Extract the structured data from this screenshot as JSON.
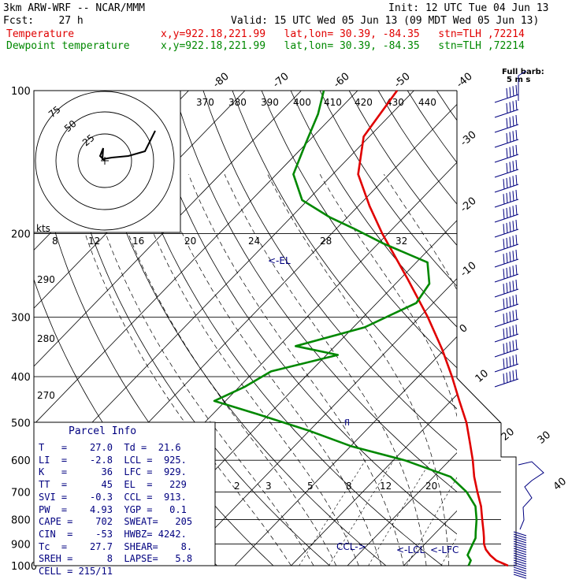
{
  "header": {
    "model": "3km ARW-WRF -- NCAR/MMM",
    "init": "Init: 12 UTC Tue 04 Jun 13",
    "fcst": "Fcst:    27 h",
    "valid": "Valid: 15 UTC Wed 05 Jun 13 (09 MDT Wed 05 Jun 13)",
    "temp_label": "Temperature",
    "temp_info": "x,y=922.18,221.99   lat,lon= 30.39, -84.35   stn=TLH ,72214",
    "dew_label": "Dewpoint temperature",
    "dew_info": "x,y=922.18,221.99   lat,lon= 30.39, -84.35   stn=TLH ,72214"
  },
  "colors": {
    "temperature": "#e00000",
    "dewpoint": "#008800",
    "annotation": "#000080",
    "hodograph": "#000000"
  },
  "chart_data": {
    "type": "line",
    "subtype": "skew-T log-p sounding",
    "pressure_levels": [
      "100",
      "200",
      "300",
      "400",
      "500",
      "600",
      "700",
      "800",
      "900",
      "1000"
    ],
    "isotherm_labels": [
      "-80",
      "-70",
      "-60",
      "-50",
      "-40",
      "-30",
      "-20",
      "-10",
      "0",
      "10",
      "20",
      "30",
      "40"
    ],
    "theta_labels": [
      "370",
      "380",
      "390",
      "400",
      "410",
      "420",
      "430",
      "440"
    ],
    "theta_low_labels": [
      "290",
      "280",
      "270"
    ],
    "mixing_ratio_labels": [
      "2",
      "3",
      "5",
      "8",
      "12",
      "20"
    ],
    "series": [
      {
        "name": "Temperature",
        "points": [
          [
            1000,
            28.5
          ],
          [
            975,
            25.5
          ],
          [
            950,
            23.5
          ],
          [
            925,
            21.8
          ],
          [
            900,
            20.5
          ],
          [
            875,
            19.5
          ],
          [
            850,
            18.4
          ],
          [
            800,
            16
          ],
          [
            750,
            13.5
          ],
          [
            700,
            10.4
          ],
          [
            650,
            7.2
          ],
          [
            600,
            4.1
          ],
          [
            550,
            0.5
          ],
          [
            500,
            -3.5
          ],
          [
            450,
            -8.5
          ],
          [
            400,
            -14
          ],
          [
            350,
            -20.5
          ],
          [
            300,
            -28.5
          ],
          [
            250,
            -38.5
          ],
          [
            200,
            -51
          ],
          [
            175,
            -58
          ],
          [
            150,
            -65.5
          ],
          [
            125,
            -71
          ],
          [
            100,
            -73
          ]
        ]
      },
      {
        "name": "Dewpoint temperature",
        "points": [
          [
            1000,
            21.5
          ],
          [
            975,
            21
          ],
          [
            950,
            19.5
          ],
          [
            925,
            19
          ],
          [
            900,
            18.5
          ],
          [
            875,
            18
          ],
          [
            850,
            17
          ],
          [
            800,
            15
          ],
          [
            750,
            12.5
          ],
          [
            700,
            8.5
          ],
          [
            650,
            3
          ],
          [
            600,
            -8
          ],
          [
            560,
            -20
          ],
          [
            520,
            -30
          ],
          [
            480,
            -42
          ],
          [
            450,
            -52
          ],
          [
            420,
            -49
          ],
          [
            390,
            -47
          ],
          [
            360,
            -38
          ],
          [
            345,
            -47
          ],
          [
            315,
            -38
          ],
          [
            280,
            -33
          ],
          [
            255,
            -34
          ],
          [
            230,
            -38
          ],
          [
            210,
            -49
          ],
          [
            195,
            -57
          ],
          [
            185,
            -63
          ],
          [
            170,
            -71
          ],
          [
            150,
            -77
          ],
          [
            130,
            -80
          ],
          [
            112,
            -83
          ],
          [
            100,
            -86
          ]
        ]
      }
    ],
    "hodograph": {
      "rings": [
        "50",
        "25",
        "75"
      ],
      "kts_label": "kts",
      "x_ticks": [
        "8",
        "12",
        "16",
        "20",
        "24",
        "28",
        "32"
      ]
    },
    "wind_barbs_legend": [
      "Full barb:",
      "5 m s"
    ],
    "annotations": {
      "el": "<-EL",
      "ccl": "CCL->",
      "lcl": "<-LCL",
      "lfc": "<-LFC",
      "freezing": "fl"
    }
  },
  "parcel_info": {
    "title": "Parcel Info",
    "lines": [
      "T   =    27.0  Td =  21.6",
      "LI  =    -2.8  LCL =  925.",
      "K   =      36  LFC =  929.",
      "TT  =      45  EL  =   229",
      "SVI =    -0.3  CCL =  913.",
      "PW  =    4.93  YGP =   0.1",
      "CAPE =    702  SWEAT=   205",
      "CIN  =    -53  HWBZ= 4242.",
      "Tc  =    27.7  SHEAR=    8.",
      "SREH =      8  LAPSE=   5.8",
      "CELL = 215/11"
    ]
  }
}
